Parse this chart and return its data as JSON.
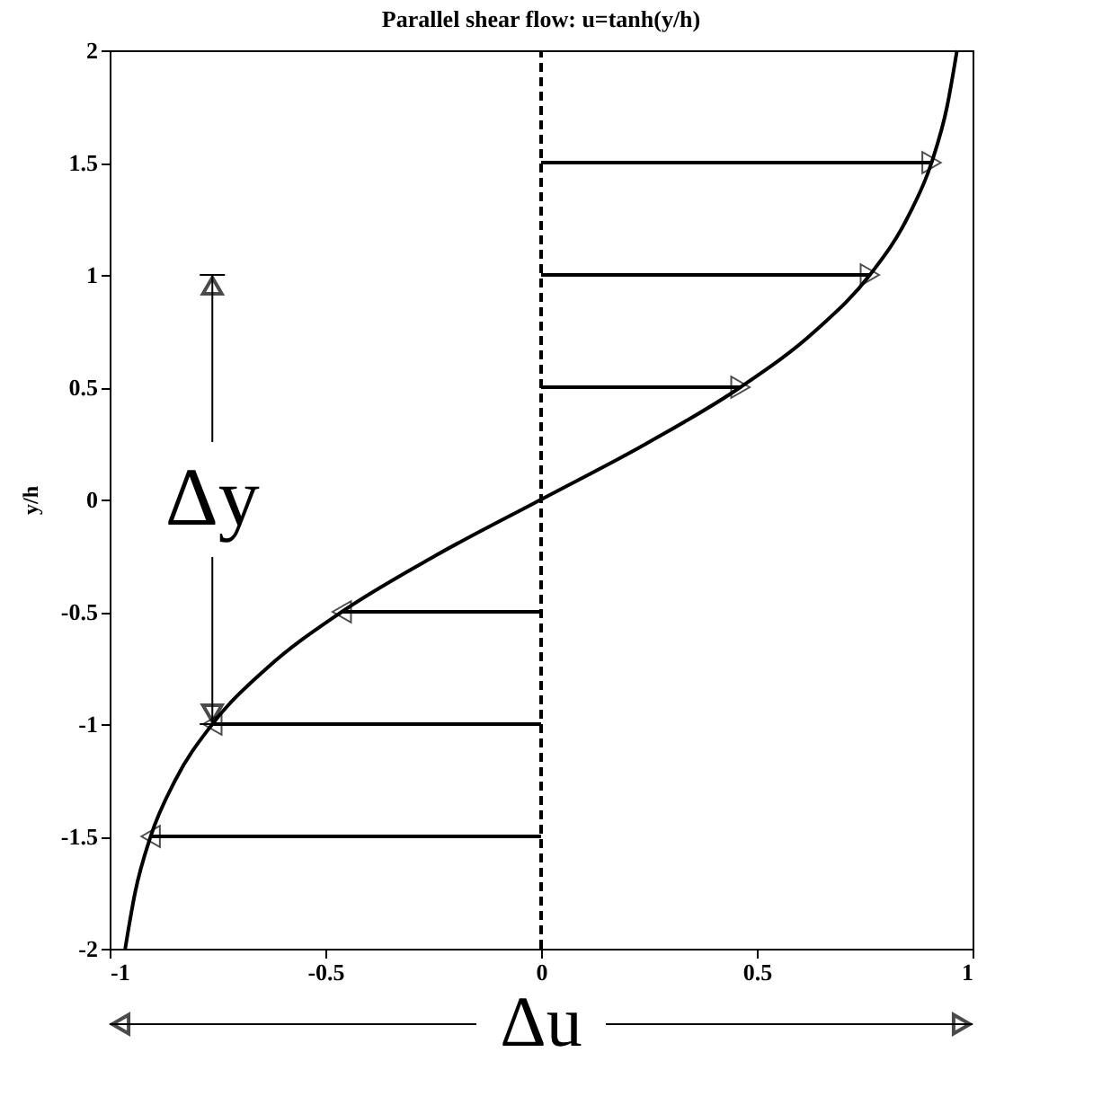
{
  "chart_data": {
    "type": "line",
    "title": "Parallel shear flow: u=tanh(y/h)",
    "ylabel": "y/h",
    "xlim": [
      -1,
      1
    ],
    "ylim": [
      -2,
      2
    ],
    "xticks": [
      {
        "value": -1,
        "label": "-1"
      },
      -0.5,
      {
        "value": 0,
        "label": "0"
      },
      0.5,
      {
        "value": 1,
        "label": "1"
      }
    ],
    "yticks": [
      {
        "value": -2,
        "label": "-2"
      },
      -1.5,
      {
        "value": -1,
        "label": "-1"
      },
      -0.5,
      {
        "value": 0,
        "label": "0"
      },
      0.5,
      {
        "value": 1,
        "label": "1"
      },
      1.5,
      {
        "value": 2,
        "label": "2"
      }
    ],
    "series": [
      {
        "color": "#000000",
        "x": [
          -0.964,
          -0.941,
          -0.905,
          -0.848,
          -0.762,
          -0.635,
          -0.462,
          -0.245,
          0,
          0.245,
          0.462,
          0.635,
          0.762,
          0.848,
          0.905,
          0.941,
          0.964
        ],
        "values": [
          -2,
          -1.75,
          -1.5,
          -1.25,
          -1,
          -0.75,
          -0.5,
          -0.25,
          0,
          0.25,
          0.5,
          0.75,
          1,
          1.25,
          1.5,
          1.75,
          2
        ]
      },
      {
        "color": "#000000",
        "x": [
          0,
          0.462
        ],
        "values": [
          0.5,
          0.5
        ]
      },
      {
        "color": "#000000",
        "x": [
          0,
          0.762
        ],
        "values": [
          1,
          1
        ]
      },
      {
        "color": "#000000",
        "x": [
          0,
          0.905
        ],
        "values": [
          1.5,
          1.5
        ]
      },
      {
        "color": "#000000",
        "x": [
          0,
          -0.462
        ],
        "values": [
          -0.5,
          -0.5
        ]
      },
      {
        "color": "#000000",
        "x": [
          0,
          -0.762
        ],
        "values": [
          -1,
          -1
        ]
      },
      {
        "color": "#000000",
        "x": [
          0,
          -0.905
        ],
        "values": [
          -1.5,
          -1.5
        ]
      }
    ],
    "ref_lines": [
      {
        "axis": "x",
        "value": 0,
        "line_style": "dashed"
      }
    ],
    "annotations": [
      {
        "text": "Δy",
        "x": -0.762,
        "y": -1
      },
      "Δu"
    ]
  }
}
